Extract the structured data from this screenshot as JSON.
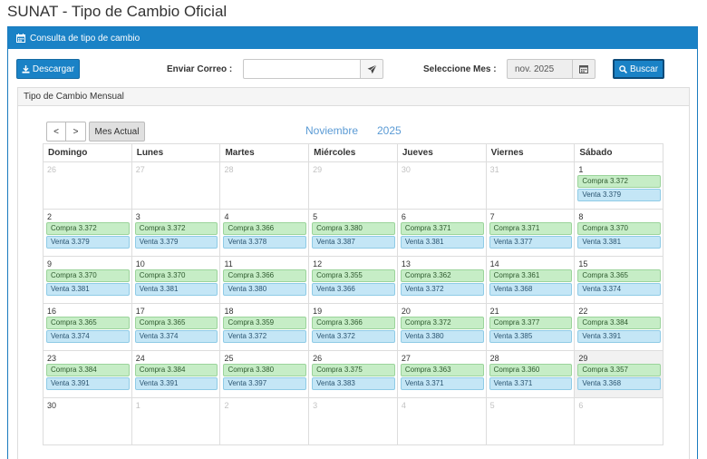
{
  "page": {
    "title": "SUNAT - Tipo de Cambio Oficial"
  },
  "panel": {
    "title": "Consulta de tipo de cambio",
    "icon": "calendar-icon"
  },
  "toolbar": {
    "download_label": "Descargar",
    "email_label": "Enviar Correo :",
    "email_value": "",
    "month_label": "Seleccione Mes :",
    "month_value": "nov. 2025",
    "search_label": "Buscar"
  },
  "monthly": {
    "title": "Tipo de Cambio Mensual"
  },
  "calendar": {
    "prev_label": "<",
    "next_label": ">",
    "current_label": "Mes Actual",
    "month_name": "Noviembre",
    "year": "2025",
    "weekdays": [
      "Domingo",
      "Lunes",
      "Martes",
      "Miércoles",
      "Jueves",
      "Viernes",
      "Sábado"
    ],
    "weeks": [
      [
        {
          "day": "26",
          "other": true
        },
        {
          "day": "27",
          "other": true
        },
        {
          "day": "28",
          "other": true
        },
        {
          "day": "29",
          "other": true
        },
        {
          "day": "30",
          "other": true
        },
        {
          "day": "31",
          "other": true
        },
        {
          "day": "1",
          "compra": "Compra 3.372",
          "venta": "Venta 3.379"
        }
      ],
      [
        {
          "day": "2",
          "compra": "Compra 3.372",
          "venta": "Venta 3.379"
        },
        {
          "day": "3",
          "compra": "Compra 3.372",
          "venta": "Venta 3.379"
        },
        {
          "day": "4",
          "compra": "Compra 3.366",
          "venta": "Venta 3.378"
        },
        {
          "day": "5",
          "compra": "Compra 3.380",
          "venta": "Venta 3.387"
        },
        {
          "day": "6",
          "compra": "Compra 3.371",
          "venta": "Venta 3.381"
        },
        {
          "day": "7",
          "compra": "Compra 3.371",
          "venta": "Venta 3.377"
        },
        {
          "day": "8",
          "compra": "Compra 3.370",
          "venta": "Venta 3.381"
        }
      ],
      [
        {
          "day": "9",
          "compra": "Compra 3.370",
          "venta": "Venta 3.381"
        },
        {
          "day": "10",
          "compra": "Compra 3.370",
          "venta": "Venta 3.381"
        },
        {
          "day": "11",
          "compra": "Compra 3.366",
          "venta": "Venta 3.380"
        },
        {
          "day": "12",
          "compra": "Compra 3.355",
          "venta": "Venta 3.366"
        },
        {
          "day": "13",
          "compra": "Compra 3.362",
          "venta": "Venta 3.372"
        },
        {
          "day": "14",
          "compra": "Compra 3.361",
          "venta": "Venta 3.368"
        },
        {
          "day": "15",
          "compra": "Compra 3.365",
          "venta": "Venta 3.374"
        }
      ],
      [
        {
          "day": "16",
          "compra": "Compra 3.365",
          "venta": "Venta 3.374"
        },
        {
          "day": "17",
          "compra": "Compra 3.365",
          "venta": "Venta 3.374"
        },
        {
          "day": "18",
          "compra": "Compra 3.359",
          "venta": "Venta 3.372"
        },
        {
          "day": "19",
          "compra": "Compra 3.366",
          "venta": "Venta 3.372"
        },
        {
          "day": "20",
          "compra": "Compra 3.372",
          "venta": "Venta 3.380"
        },
        {
          "day": "21",
          "compra": "Compra 3.377",
          "venta": "Venta 3.385"
        },
        {
          "day": "22",
          "compra": "Compra 3.384",
          "venta": "Venta 3.391"
        }
      ],
      [
        {
          "day": "23",
          "compra": "Compra 3.384",
          "venta": "Venta 3.391"
        },
        {
          "day": "24",
          "compra": "Compra 3.384",
          "venta": "Venta 3.391"
        },
        {
          "day": "25",
          "compra": "Compra 3.380",
          "venta": "Venta 3.397"
        },
        {
          "day": "26",
          "compra": "Compra 3.375",
          "venta": "Venta 3.383"
        },
        {
          "day": "27",
          "compra": "Compra 3.363",
          "venta": "Venta 3.371"
        },
        {
          "day": "28",
          "compra": "Compra 3.360",
          "venta": "Venta 3.371"
        },
        {
          "day": "29",
          "compra": "Compra 3.357",
          "venta": "Venta 3.368",
          "today": true
        }
      ],
      [
        {
          "day": "30"
        },
        {
          "day": "1",
          "other": true
        },
        {
          "day": "2",
          "other": true
        },
        {
          "day": "3",
          "other": true
        },
        {
          "day": "4",
          "other": true
        },
        {
          "day": "5",
          "other": true
        },
        {
          "day": "6",
          "other": true
        }
      ]
    ]
  },
  "colors": {
    "primary": "#1a82c6",
    "compra_bg": "#c6edc6",
    "venta_bg": "#c4e6f6",
    "title_accent": "#5b9bd5"
  }
}
